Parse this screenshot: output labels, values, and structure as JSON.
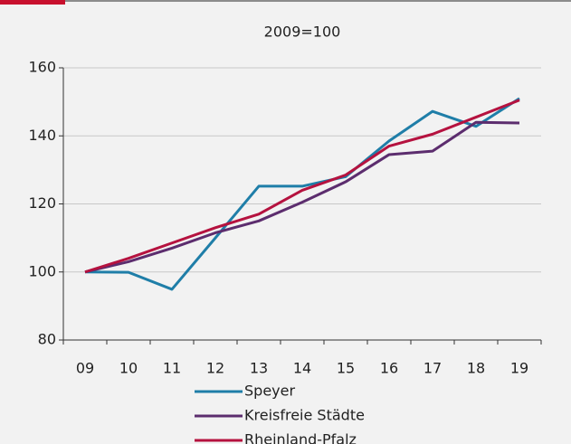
{
  "chart_data": {
    "type": "line",
    "title": "2009=100",
    "categories": [
      "09",
      "10",
      "11",
      "12",
      "13",
      "14",
      "15",
      "16",
      "17",
      "18",
      "19"
    ],
    "series": [
      {
        "name": "Speyer",
        "color": "#1f7ea8",
        "values": [
          100,
          99.9,
          94.9,
          110,
          125.2,
          125.2,
          128,
          138.5,
          147.2,
          142.8,
          151
        ]
      },
      {
        "name": "Kreisfreie Städte",
        "color": "#5c2d6e",
        "values": [
          100,
          103,
          107,
          111.5,
          115,
          120.5,
          126.5,
          134.5,
          135.5,
          144,
          143.8
        ]
      },
      {
        "name": "Rheinland-Pfalz",
        "color": "#b5123f",
        "values": [
          100,
          104,
          108.5,
          113,
          117,
          124,
          128.5,
          137,
          140.5,
          145.5,
          150.5
        ]
      }
    ],
    "ylim": [
      80,
      160
    ],
    "yticks": [
      80,
      100,
      120,
      140,
      160
    ],
    "grid": true
  }
}
